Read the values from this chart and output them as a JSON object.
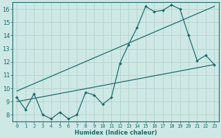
{
  "xlabel": "Humidex (Indice chaleur)",
  "bg_color": "#cde8e5",
  "line_color": "#1a6b6b",
  "grid_color": "#b8d4d0",
  "xlim": [
    -0.5,
    23.5
  ],
  "ylim": [
    7.5,
    16.5
  ],
  "xticks": [
    0,
    1,
    2,
    3,
    4,
    5,
    6,
    7,
    8,
    9,
    10,
    11,
    12,
    13,
    14,
    15,
    16,
    17,
    18,
    19,
    20,
    21,
    22,
    23
  ],
  "yticks": [
    8,
    9,
    10,
    11,
    12,
    13,
    14,
    15,
    16
  ],
  "series0": {
    "x": [
      0,
      1,
      2,
      3,
      4,
      5,
      6,
      7,
      8,
      9,
      10,
      11,
      12,
      13,
      14,
      15,
      16,
      17,
      18,
      19,
      20,
      21,
      22,
      23
    ],
    "y": [
      9.3,
      8.4,
      9.6,
      8.0,
      7.7,
      8.2,
      7.7,
      8.0,
      9.7,
      9.5,
      8.8,
      9.3,
      11.9,
      13.3,
      14.6,
      16.2,
      15.8,
      15.9,
      16.3,
      16.0,
      14.0,
      12.1,
      12.5,
      11.8
    ]
  },
  "series1": {
    "x": [
      0,
      23
    ],
    "y": [
      9.0,
      11.8
    ]
  },
  "series2": {
    "x": [
      0,
      23
    ],
    "y": [
      9.8,
      16.2
    ]
  }
}
